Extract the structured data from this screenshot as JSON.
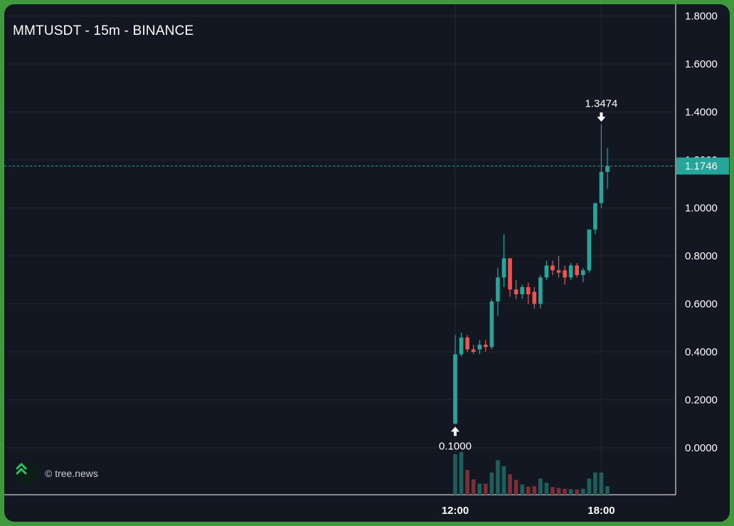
{
  "chart_title": "MMTUSDT - 15m - BINANCE",
  "watermark": {
    "text": "© tree.news",
    "icon": "double-chevron-up-icon",
    "color": "#2ebd6b"
  },
  "colors": {
    "background": "#131722",
    "up": "#26a69a",
    "down": "#ef5350",
    "volume_up": "#1d5f5a",
    "volume_down": "#7b3035",
    "grid": "#222733",
    "axis_text": "#ffffff",
    "price_line": "#26a69a"
  },
  "chart_data": {
    "type": "candlestick",
    "y_axis": {
      "position": "right",
      "ticks": [
        "1.8000",
        "1.6000",
        "1.4000",
        "1.2000",
        "1.0000",
        "0.8000",
        "0.6000",
        "0.4000",
        "0.2000",
        "0.0000"
      ],
      "range": [
        -0.2,
        1.8
      ]
    },
    "x_axis": {
      "tick_labels": [
        "12:00",
        "18:00"
      ]
    },
    "grid": true,
    "last_price": {
      "label": "1.1746",
      "value": 1.1746
    },
    "annotations": [
      {
        "label": "0.1000",
        "value": 0.1,
        "type": "low",
        "arrow": "up"
      },
      {
        "label": "1.3474",
        "value": 1.3474,
        "type": "high",
        "arrow": "down"
      }
    ],
    "candles": [
      {
        "o": 0.1,
        "h": 0.47,
        "l": 0.1,
        "c": 0.39,
        "v": 0.95
      },
      {
        "o": 0.39,
        "h": 0.48,
        "l": 0.38,
        "c": 0.46,
        "v": 1.0
      },
      {
        "o": 0.46,
        "h": 0.47,
        "l": 0.4,
        "c": 0.41,
        "v": 0.58
      },
      {
        "o": 0.41,
        "h": 0.43,
        "l": 0.39,
        "c": 0.4,
        "v": 0.36
      },
      {
        "o": 0.41,
        "h": 0.45,
        "l": 0.39,
        "c": 0.43,
        "v": 0.26
      },
      {
        "o": 0.43,
        "h": 0.45,
        "l": 0.4,
        "c": 0.42,
        "v": 0.26
      },
      {
        "o": 0.42,
        "h": 0.62,
        "l": 0.41,
        "c": 0.61,
        "v": 0.52
      },
      {
        "o": 0.61,
        "h": 0.75,
        "l": 0.55,
        "c": 0.71,
        "v": 0.81
      },
      {
        "o": 0.71,
        "h": 0.89,
        "l": 0.67,
        "c": 0.79,
        "v": 0.67
      },
      {
        "o": 0.79,
        "h": 0.79,
        "l": 0.63,
        "c": 0.66,
        "v": 0.48
      },
      {
        "o": 0.66,
        "h": 0.7,
        "l": 0.62,
        "c": 0.64,
        "v": 0.35
      },
      {
        "o": 0.64,
        "h": 0.68,
        "l": 0.62,
        "c": 0.67,
        "v": 0.24
      },
      {
        "o": 0.67,
        "h": 0.69,
        "l": 0.6,
        "c": 0.64,
        "v": 0.19
      },
      {
        "o": 0.65,
        "h": 0.67,
        "l": 0.58,
        "c": 0.6,
        "v": 0.2
      },
      {
        "o": 0.6,
        "h": 0.72,
        "l": 0.58,
        "c": 0.71,
        "v": 0.38
      },
      {
        "o": 0.71,
        "h": 0.78,
        "l": 0.7,
        "c": 0.76,
        "v": 0.28
      },
      {
        "o": 0.76,
        "h": 0.78,
        "l": 0.72,
        "c": 0.74,
        "v": 0.18
      },
      {
        "o": 0.74,
        "h": 0.8,
        "l": 0.71,
        "c": 0.73,
        "v": 0.16
      },
      {
        "o": 0.74,
        "h": 0.76,
        "l": 0.68,
        "c": 0.71,
        "v": 0.14
      },
      {
        "o": 0.71,
        "h": 0.77,
        "l": 0.7,
        "c": 0.76,
        "v": 0.13
      },
      {
        "o": 0.76,
        "h": 0.77,
        "l": 0.71,
        "c": 0.72,
        "v": 0.12
      },
      {
        "o": 0.72,
        "h": 0.75,
        "l": 0.69,
        "c": 0.74,
        "v": 0.14
      },
      {
        "o": 0.74,
        "h": 0.91,
        "l": 0.73,
        "c": 0.91,
        "v": 0.38
      },
      {
        "o": 0.91,
        "h": 1.02,
        "l": 0.89,
        "c": 1.02,
        "v": 0.52
      },
      {
        "o": 1.02,
        "h": 1.3474,
        "l": 1.0,
        "c": 1.15,
        "v": 0.52
      },
      {
        "o": 1.15,
        "h": 1.25,
        "l": 1.08,
        "c": 1.1746,
        "v": 0.2
      }
    ]
  }
}
